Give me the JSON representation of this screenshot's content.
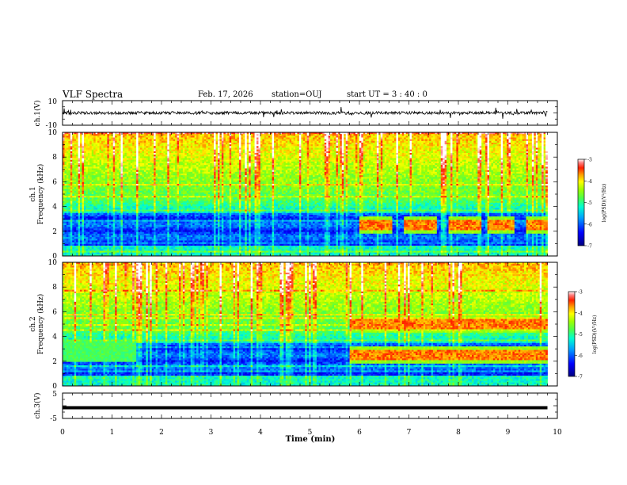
{
  "header": {
    "title": "VLF Spectra",
    "date": "Feb. 17, 2026",
    "station": "station=OUJ",
    "start_ut": "start UT =  3 : 40 : 0"
  },
  "colors": {
    "spectrum": [
      "#00007f",
      "#0000ff",
      "#00a0ff",
      "#00ffd0",
      "#4cff4c",
      "#a0ff00",
      "#ffff00",
      "#ffa000",
      "#ff2000",
      "#ff0000",
      "#ffffff"
    ],
    "trace": "#000000"
  },
  "chart_data": [
    {
      "id": "ch1-waveform",
      "type": "line",
      "ylabel": "ch.1(V)",
      "ylim": [
        -10,
        10
      ],
      "yticks": [
        "10",
        "-10"
      ],
      "xlim": [
        0,
        10
      ],
      "description": "noisy waveform around 0 V with sporadic spikes, recorded 0 to 9.8 min"
    },
    {
      "id": "ch1-spectrogram",
      "type": "heatmap",
      "ylabel": "ch.1 Frequency (kHz)",
      "ylim": [
        0,
        10
      ],
      "yticks": [
        "0",
        "2",
        "4",
        "6",
        "8",
        "10"
      ],
      "xlim": [
        0,
        10
      ],
      "colorbar": {
        "label": "log(PSD)(V²/Hz)",
        "range": [
          -7,
          -3
        ],
        "ticks": [
          "-3",
          "-4",
          "-5",
          "-6",
          "-7"
        ]
      },
      "bands": [
        {
          "t_start": 6.0,
          "t_end": 9.8,
          "freq_khz": 2.5,
          "pulses": [
            [
              6.0,
              6.65
            ],
            [
              6.9,
              7.55
            ],
            [
              7.8,
              8.45
            ],
            [
              8.6,
              9.15
            ],
            [
              9.35,
              9.8
            ]
          ]
        }
      ]
    },
    {
      "id": "ch2-spectrogram",
      "type": "heatmap",
      "ylabel": "ch.2 Frequency (kHz)",
      "ylim": [
        0,
        10
      ],
      "yticks": [
        "0",
        "2",
        "4",
        "6",
        "8",
        "10"
      ],
      "xlim": [
        0,
        10
      ],
      "colorbar": {
        "label": "log(PSD)(V²/Hz)",
        "range": [
          -7,
          -3
        ],
        "ticks": [
          "-3",
          "-4",
          "-5",
          "-6",
          "-7"
        ]
      },
      "bands": [
        {
          "t_start": 0.0,
          "t_end": 1.5,
          "freq_khz": [
            2.0,
            3.7
          ],
          "level": -5
        },
        {
          "t_start": 5.8,
          "t_end": 9.8,
          "freq_khz": 5.0,
          "level": -3.5
        },
        {
          "t_start": 5.8,
          "t_end": 9.8,
          "freq_khz": 2.5,
          "level": -3.8
        }
      ]
    },
    {
      "id": "ch3-waveform",
      "type": "line",
      "ylabel": "ch.3(V)",
      "ylim": [
        -5,
        5
      ],
      "yticks": [
        "5",
        "-5"
      ],
      "xlim": [
        0,
        10
      ],
      "xlabel": "Time (min)",
      "xticks": [
        "0",
        "1",
        "2",
        "3",
        "4",
        "5",
        "6",
        "7",
        "8",
        "9",
        "10"
      ],
      "y_value": -0.8
    }
  ]
}
